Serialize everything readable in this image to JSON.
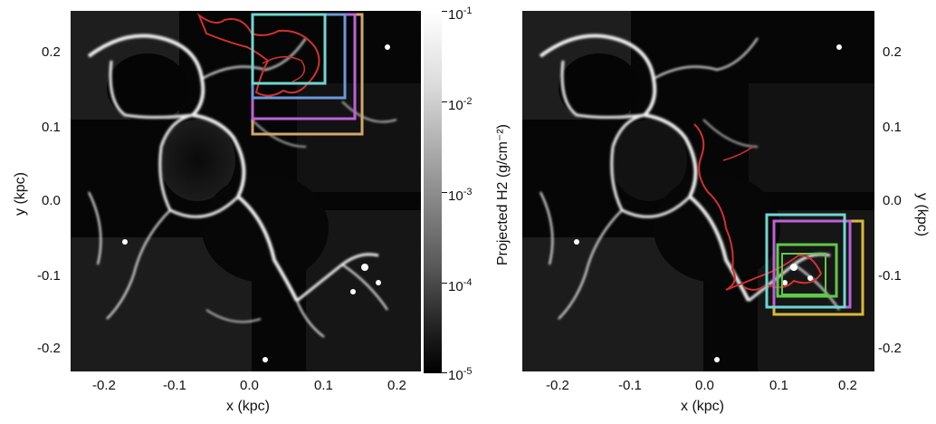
{
  "left_panel": {
    "x_ticks": [
      "-0.2",
      "-0.1",
      "0.0",
      "0.1",
      "0.2"
    ],
    "y_ticks": [
      "0.2",
      "0.1",
      "0.0",
      "-0.1",
      "-0.2"
    ],
    "xlabel": "x (kpc)",
    "ylabel": "y (kpc)"
  },
  "colorbar": {
    "label": "Projected H2 (g/cm⁻²)",
    "ticks": [
      {
        "base": "10",
        "exp": "-1"
      },
      {
        "base": "10",
        "exp": "-2"
      },
      {
        "base": "10",
        "exp": "-3"
      },
      {
        "base": "10",
        "exp": "-4"
      },
      {
        "base": "10",
        "exp": "-5"
      }
    ]
  },
  "right_panel": {
    "x_ticks": [
      "-0.2",
      "-0.1",
      "0.0",
      "0.1",
      "0.2"
    ],
    "y_ticks": [
      "0.2",
      "0.1",
      "0.0",
      "-0.1",
      "-0.2"
    ],
    "xlabel": "x (kpc)",
    "ylabel": "y (kpc)"
  },
  "box_colors": {
    "tan": "#d2a76a",
    "magenta": "#c060d8",
    "blue": "#6a9ad8",
    "cyan": "#70d6d0",
    "yellow": "#d9b83a",
    "green": "#60c84a",
    "contour": "#d23030"
  }
}
